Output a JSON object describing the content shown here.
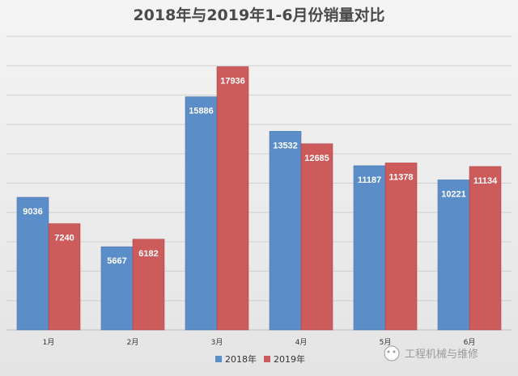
{
  "chart_data": {
    "type": "bar",
    "title": "2018年与2019年1-6月份销量对比",
    "categories": [
      "1月",
      "2月",
      "3月",
      "4月",
      "5月",
      "6月"
    ],
    "series": [
      {
        "name": "2018年",
        "values": [
          9036,
          5667,
          15886,
          13532,
          11187,
          10221
        ],
        "color": "#5b8dc9"
      },
      {
        "name": "2019年",
        "values": [
          7240,
          6182,
          17936,
          12685,
          11378,
          11134
        ],
        "color": "#cd5b5b"
      }
    ],
    "ylim": [
      0,
      20000
    ],
    "grid": true,
    "legend_position": "bottom"
  },
  "watermark": {
    "text": "工程机械与维修"
  }
}
